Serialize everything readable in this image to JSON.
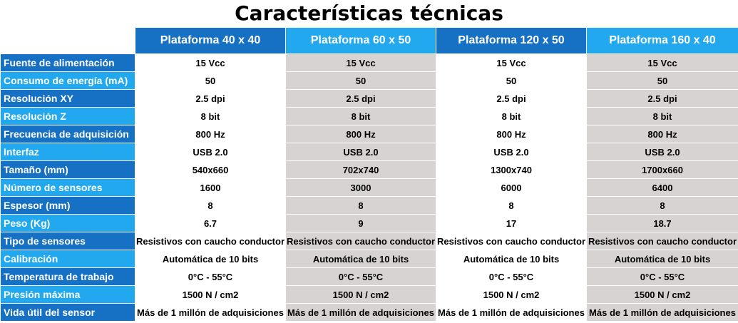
{
  "title": "Características técnicas",
  "columns": [
    "Plataforma 40 x 40",
    "Plataforma 60 x 50",
    "Plataforma 120 x 50",
    "Plataforma 160 x 40"
  ],
  "colors": {
    "header_dark": "#1670c4",
    "header_light": "#21a8ee",
    "cell_gray": "#d7d3d3",
    "cell_white": "#ffffff"
  },
  "rows": [
    {
      "label": "Fuente de alimentación",
      "values": [
        "15 Vcc",
        "15 Vcc",
        "15 Vcc",
        "15 Vcc"
      ]
    },
    {
      "label": "Consumo de energía (mA)",
      "values": [
        "50",
        "50",
        "50",
        "50"
      ]
    },
    {
      "label": "Resolución XY",
      "values": [
        "2.5 dpi",
        "2.5 dpi",
        "2.5 dpi",
        "2.5 dpi"
      ]
    },
    {
      "label": "Resolución Z",
      "values": [
        "8 bit",
        "8 bit",
        "8 bit",
        "8 bit"
      ]
    },
    {
      "label": "Frecuencia de adquisición",
      "values": [
        "800 Hz",
        "800 Hz",
        "800 Hz",
        "800 Hz"
      ]
    },
    {
      "label": "Interfaz",
      "values": [
        "USB 2.0",
        "USB 2.0",
        "USB 2.0",
        "USB 2.0"
      ]
    },
    {
      "label": "Tamaño (mm)",
      "values": [
        "540x660",
        "702x740",
        "1300x740",
        "1700x660"
      ]
    },
    {
      "label": "Número de sensores",
      "values": [
        "1600",
        "3000",
        "6000",
        "6400"
      ]
    },
    {
      "label": "Espesor (mm)",
      "values": [
        "8",
        "8",
        "8",
        "8"
      ]
    },
    {
      "label": "Peso (Kg)",
      "values": [
        "6.7",
        "9",
        "17",
        "18.7"
      ]
    },
    {
      "label": "Tipo de sensores",
      "values": [
        "Resistivos con caucho conductor",
        "Resistivos con caucho conductor",
        "Resistivos con caucho conductor",
        "Resistivos con caucho conductor"
      ]
    },
    {
      "label": "Calibración",
      "values": [
        "Automática de 10 bits",
        "Automática de 10 bits",
        "Automática de 10 bits",
        "Automática de 10 bits"
      ]
    },
    {
      "label": "Temperatura de trabajo",
      "values": [
        "0°C - 55°C",
        "0°C - 55°C",
        "0°C - 55°C",
        "0°C - 55°C"
      ]
    },
    {
      "label": "Presión máxima",
      "values": [
        "1500 N / cm2",
        "1500 N / cm2",
        "1500 N / cm2",
        "1500 N / cm2"
      ]
    },
    {
      "label": "Vida útil del sensor",
      "values": [
        "Más de 1 millón de adquisiciones",
        "Más de 1 millón de adquisiciones",
        "Más de 1 millón de adquisiciones",
        "Más de 1 millón de adquisiciones"
      ]
    }
  ]
}
